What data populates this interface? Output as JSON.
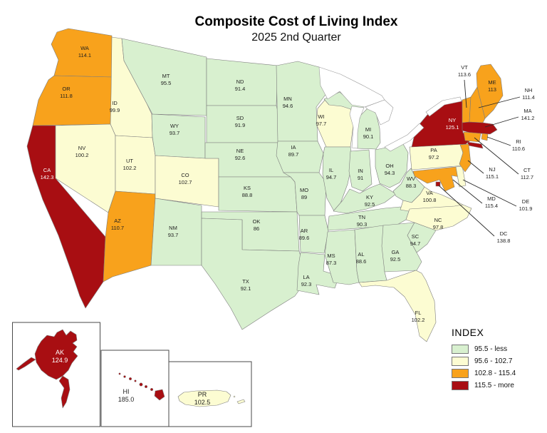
{
  "title": "Composite Cost of Living Index",
  "subtitle": "2025 2nd Quarter",
  "legend": {
    "title": "INDEX",
    "classes": [
      {
        "label": "95.5 - less",
        "color": "#d8f0cf"
      },
      {
        "label": "95.6 - 102.7",
        "color": "#fcfcd2"
      },
      {
        "label": "102.8 - 115.4",
        "color": "#f8a21c"
      },
      {
        "label": "115.5 - more",
        "color": "#a80e12"
      }
    ]
  },
  "map": {
    "border_color": "#7d7d7d",
    "label_color": "#1f1f1f",
    "callout_color": "#2a2a2a",
    "water_outline": "#9a9a9a",
    "inset_border": "#4a4a4a"
  },
  "states": [
    {
      "id": "WA",
      "value": "114.1",
      "cls": 2
    },
    {
      "id": "OR",
      "value": "111.8",
      "cls": 2
    },
    {
      "id": "CA",
      "value": "142.3",
      "cls": 3
    },
    {
      "id": "ID",
      "value": "99.9",
      "cls": 1
    },
    {
      "id": "NV",
      "value": "100.2",
      "cls": 1
    },
    {
      "id": "UT",
      "value": "102.2",
      "cls": 1
    },
    {
      "id": "AZ",
      "value": "110.7",
      "cls": 2
    },
    {
      "id": "MT",
      "value": "95.5",
      "cls": 0
    },
    {
      "id": "WY",
      "value": "93.7",
      "cls": 0
    },
    {
      "id": "CO",
      "value": "102.7",
      "cls": 1
    },
    {
      "id": "NM",
      "value": "93.7",
      "cls": 0
    },
    {
      "id": "ND",
      "value": "91.4",
      "cls": 0
    },
    {
      "id": "SD",
      "value": "91.9",
      "cls": 0
    },
    {
      "id": "NE",
      "value": "92.6",
      "cls": 0
    },
    {
      "id": "KS",
      "value": "88.8",
      "cls": 0
    },
    {
      "id": "OK",
      "value": "86",
      "cls": 0
    },
    {
      "id": "TX",
      "value": "92.1",
      "cls": 0
    },
    {
      "id": "MN",
      "value": "94.6",
      "cls": 0
    },
    {
      "id": "WI",
      "value": "97.7",
      "cls": 1
    },
    {
      "id": "IA",
      "value": "89.7",
      "cls": 0
    },
    {
      "id": "MO",
      "value": "89",
      "cls": 0
    },
    {
      "id": "IL",
      "value": "94.7",
      "cls": 0
    },
    {
      "id": "IN",
      "value": "91",
      "cls": 0
    },
    {
      "id": "MI",
      "value": "90.1",
      "cls": 0
    },
    {
      "id": "OH",
      "value": "94.3",
      "cls": 0
    },
    {
      "id": "KY",
      "value": "92.5",
      "cls": 0
    },
    {
      "id": "TN",
      "value": "90.3",
      "cls": 0
    },
    {
      "id": "WV",
      "value": "88.3",
      "cls": 0
    },
    {
      "id": "VA",
      "value": "100.8",
      "cls": 1
    },
    {
      "id": "AR",
      "value": "89.6",
      "cls": 0
    },
    {
      "id": "LA",
      "value": "92.3",
      "cls": 0
    },
    {
      "id": "MS",
      "value": "87.3",
      "cls": 0
    },
    {
      "id": "AL",
      "value": "88.6",
      "cls": 0
    },
    {
      "id": "GA",
      "value": "92.5",
      "cls": 0
    },
    {
      "id": "SC",
      "value": "94.7",
      "cls": 0
    },
    {
      "id": "NC",
      "value": "97.8",
      "cls": 1
    },
    {
      "id": "FL",
      "value": "102.2",
      "cls": 1
    },
    {
      "id": "PA",
      "value": "97.2",
      "cls": 1
    },
    {
      "id": "NY",
      "value": "125.1",
      "cls": 3
    },
    {
      "id": "MD",
      "value": "115.4",
      "cls": 2
    },
    {
      "id": "DE",
      "value": "101.9",
      "cls": 1
    },
    {
      "id": "NJ",
      "value": "115.1",
      "cls": 2
    },
    {
      "id": "VT",
      "value": "113.6",
      "cls": 2
    },
    {
      "id": "NH",
      "value": "111.4",
      "cls": 2
    },
    {
      "id": "ME",
      "value": "113",
      "cls": 2
    },
    {
      "id": "MA",
      "value": "141.2",
      "cls": 3
    },
    {
      "id": "RI",
      "value": "110.6",
      "cls": 2
    },
    {
      "id": "CT",
      "value": "112.7",
      "cls": 2
    },
    {
      "id": "DC",
      "value": "138.8",
      "cls": 3
    },
    {
      "id": "AK",
      "value": "124.9",
      "cls": 3
    },
    {
      "id": "HI",
      "value": "185.0",
      "cls": 3
    },
    {
      "id": "PR",
      "value": "102.5",
      "cls": 1
    }
  ]
}
